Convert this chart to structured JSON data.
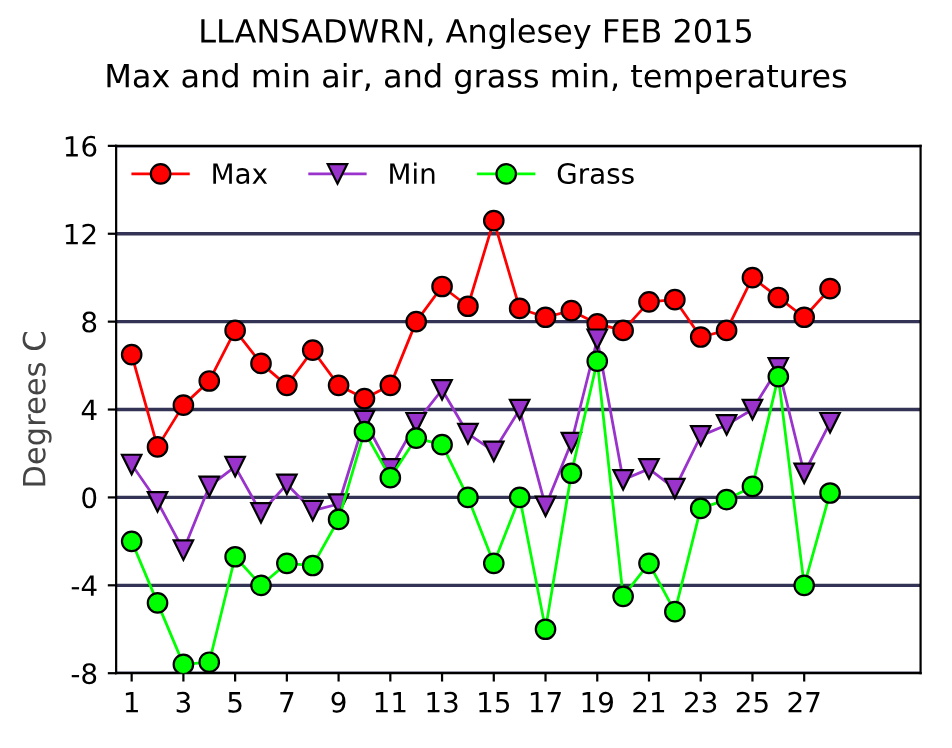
{
  "chart_data": {
    "type": "line",
    "title": "LLANSADWRN, Anglesey FEB 2015",
    "subtitle": "Max and min air, and grass min, temperatures",
    "ylabel": "Degrees C",
    "x": [
      1,
      2,
      3,
      4,
      5,
      6,
      7,
      8,
      9,
      10,
      11,
      12,
      13,
      14,
      15,
      16,
      17,
      18,
      19,
      20,
      21,
      22,
      23,
      24,
      25,
      26,
      27,
      28
    ],
    "series": [
      {
        "name": "Max",
        "color": "#ff0000",
        "marker": "circle",
        "values": [
          6.5,
          2.3,
          4.2,
          5.3,
          7.6,
          6.1,
          5.1,
          6.7,
          5.1,
          4.5,
          5.1,
          8.0,
          9.6,
          8.7,
          12.6,
          8.6,
          8.2,
          8.5,
          7.9,
          7.6,
          8.9,
          9.0,
          7.3,
          7.6,
          10.0,
          9.1,
          8.2,
          9.5
        ]
      },
      {
        "name": "Min",
        "color": "#9933cc",
        "marker": "triangle",
        "values": [
          1.5,
          -0.2,
          -2.4,
          0.5,
          1.4,
          -0.7,
          0.6,
          -0.6,
          -0.3,
          3.5,
          1.3,
          3.4,
          4.9,
          2.9,
          2.1,
          4.0,
          -0.4,
          2.5,
          7.2,
          0.8,
          1.3,
          0.4,
          2.8,
          3.3,
          4.0,
          5.9,
          1.1,
          3.4
        ]
      },
      {
        "name": "Grass",
        "color": "#00ff00",
        "marker": "circle",
        "values": [
          -2.0,
          -4.8,
          -7.6,
          -7.5,
          -2.7,
          -4.0,
          -3.0,
          -3.1,
          -1.0,
          3.0,
          0.9,
          2.7,
          2.4,
          0.0,
          -3.0,
          0.0,
          -6.0,
          1.1,
          6.2,
          -4.5,
          -3.0,
          -5.2,
          -0.5,
          -0.1,
          0.5,
          5.5,
          -4.0,
          0.2
        ]
      }
    ],
    "xlim": [
      0.4,
      31.5
    ],
    "xticks": [
      1,
      3,
      5,
      7,
      9,
      11,
      13,
      15,
      17,
      19,
      21,
      23,
      25,
      27
    ],
    "ylim": [
      -8,
      16
    ],
    "yticks": [
      -8,
      -4,
      0,
      4,
      8,
      12,
      16
    ],
    "grid": "y",
    "legend": "top left"
  }
}
